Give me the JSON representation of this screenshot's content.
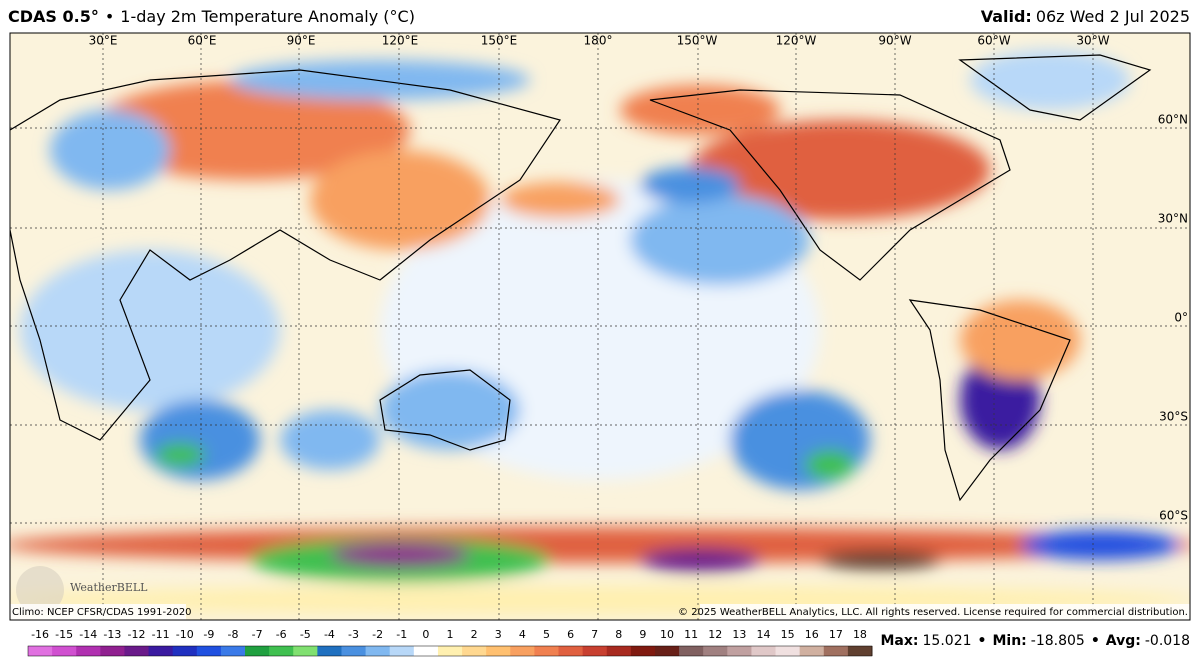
{
  "header": {
    "model": "CDAS 0.5°",
    "separator": "•",
    "title": "1-day 2m Temperature Anomaly (°C)",
    "valid_label": "Valid:",
    "valid_time": "06z Wed 2 Jul 2025"
  },
  "map": {
    "longitude_labels": [
      "30°E",
      "60°E",
      "90°E",
      "120°E",
      "150°E",
      "180°",
      "150°W",
      "120°W",
      "90°W",
      "60°W",
      "30°W"
    ],
    "latitude_labels": [
      "60°N",
      "30°N",
      "0°",
      "30°S",
      "60°S"
    ],
    "climo_note": "Climo: NCEP CFSR/CDAS 1991-2020",
    "copyright": "© 2025 WeatherBELL Analytics, LLC. All rights reserved. License required for commercial distribution.",
    "logo": "WeatherBELL"
  },
  "colorbar": {
    "ticks": [
      -16,
      -15,
      -14,
      -13,
      -12,
      -11,
      -10,
      -9,
      -8,
      -7,
      -6,
      -5,
      -4,
      -3,
      -2,
      -1,
      0,
      1,
      2,
      3,
      4,
      5,
      6,
      7,
      8,
      9,
      10,
      11,
      12,
      13,
      14,
      15,
      16,
      17,
      18
    ],
    "colors": [
      "#e070e0",
      "#d050d0",
      "#b030b0",
      "#902090",
      "#6a1a8a",
      "#3a1aa0",
      "#2030c0",
      "#2050e0",
      "#3a7ae8",
      "#20a040",
      "#40c050",
      "#80e070",
      "#2070c0",
      "#4a90e0",
      "#80b8f0",
      "#b8d8f8",
      "#ffffff",
      "#fff0b0",
      "#ffd890",
      "#ffc070",
      "#f8a060",
      "#f08050",
      "#e06040",
      "#c84030",
      "#a82a20",
      "#801a10",
      "#682018",
      "#806060",
      "#a08080",
      "#c0a0a0",
      "#e0c8c8",
      "#f0e0e0",
      "#d0b0a0",
      "#a07060",
      "#604030"
    ]
  },
  "stats": [
    {
      "label": "Max:",
      "value": 15.021
    },
    {
      "label": "Min:",
      "value": -18.805
    },
    {
      "label": "Avg:",
      "value": -0.018
    }
  ]
}
